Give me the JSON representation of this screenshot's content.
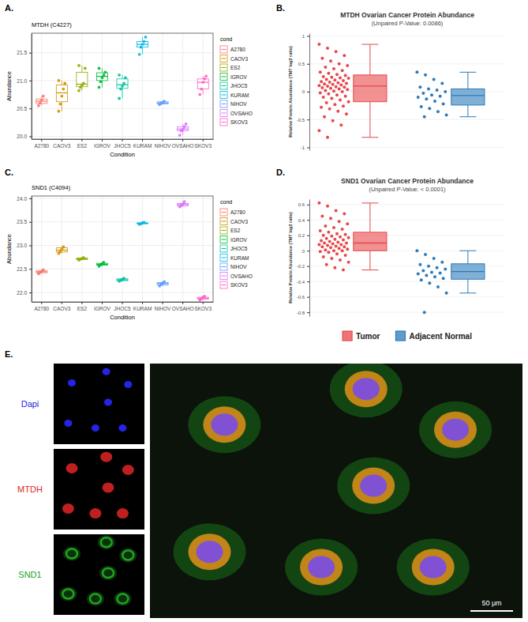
{
  "chart_data": [
    {
      "panel": "A.",
      "type": "box",
      "title": "MTDH (C4227)",
      "x_label": "Condition",
      "y_label": "Abundance",
      "legend_title": "cond",
      "legend": "right",
      "grid": true,
      "categories": [
        "A2780",
        "CAOV3",
        "ES2",
        "IGROV",
        "JHOC5",
        "KURAM",
        "NIHOV",
        "OVSAHO",
        "SKOV3"
      ],
      "colors": [
        "#F8766D",
        "#D39200",
        "#93AA00",
        "#00BA38",
        "#00C19F",
        "#00B9E3",
        "#619CFF",
        "#DB72FB",
        "#FF61C3"
      ],
      "box": {
        "min": [
          20.55,
          20.45,
          20.82,
          20.88,
          20.68,
          21.47,
          20.57,
          20.02,
          20.75
        ],
        "q1": [
          20.59,
          20.62,
          20.89,
          21.0,
          20.86,
          21.6,
          20.58,
          20.1,
          20.85
        ],
        "median": [
          20.63,
          20.78,
          20.935,
          21.075,
          20.925,
          21.65,
          20.6,
          20.13,
          20.97
        ],
        "q3": [
          20.67,
          20.92,
          21.15,
          21.14,
          21.03,
          21.7,
          20.62,
          20.17,
          21.03
        ],
        "max": [
          20.72,
          21.0,
          21.27,
          21.22,
          21.1,
          21.78,
          20.63,
          20.22,
          21.08
        ]
      },
      "points": [
        [
          20.55,
          20.6,
          20.65,
          20.72
        ],
        [
          20.45,
          20.58,
          20.72,
          20.85,
          20.95,
          21.0
        ],
        [
          20.82,
          20.88,
          20.92,
          20.95,
          21.22,
          21.27
        ],
        [
          20.88,
          20.98,
          21.05,
          21.1,
          21.15,
          21.22
        ],
        [
          20.68,
          20.85,
          20.9,
          20.95,
          21.05,
          21.1
        ],
        [
          21.47,
          21.6,
          21.65,
          21.7,
          21.78
        ],
        [
          20.57,
          20.59,
          20.61,
          20.63
        ],
        [
          20.02,
          20.1,
          20.13,
          20.17,
          20.22
        ],
        [
          20.75,
          20.85,
          20.97,
          21.03,
          21.08
        ]
      ],
      "ylim": [
        19.95,
        21.85
      ],
      "yticks": [
        {
          "value": 20,
          "label": "20.0"
        },
        20.5,
        {
          "value": 21,
          "label": "21.0"
        },
        21.5
      ]
    },
    {
      "panel": "B.",
      "type": "box",
      "title": "MTDH Ovarian Cancer Protein Abundance",
      "subtitle": "(Unpaired P-Value: 0.0086)",
      "y_label": "Relative Protein Abundance (TMT log2 ratio)",
      "tick_labels": "y",
      "grid": true,
      "series": [
        {
          "color": "#e8474a",
          "box": {
            "min": -0.82,
            "q1": -0.18,
            "median": 0.1,
            "q3": 0.3,
            "max": 0.85
          },
          "points": [
            0.85,
            0.78,
            0.72,
            0.65,
            0.6,
            0.55,
            0.5,
            0.47,
            0.44,
            0.41,
            0.38,
            0.35,
            0.33,
            0.31,
            0.29,
            0.27,
            0.26,
            0.25,
            0.24,
            0.22,
            0.21,
            0.2,
            0.18,
            0.17,
            0.16,
            0.15,
            0.14,
            0.13,
            0.12,
            0.11,
            0.1,
            0.09,
            0.08,
            0.07,
            0.06,
            0.05,
            0.04,
            0.02,
            0.01,
            0,
            -0.02,
            -0.04,
            -0.06,
            -0.08,
            -0.1,
            -0.12,
            -0.15,
            -0.18,
            -0.2,
            -0.23,
            -0.26,
            -0.28,
            -0.31,
            -0.35,
            -0.4,
            -0.45,
            -0.52,
            -0.6,
            -0.7,
            -0.82
          ]
        },
        {
          "color": "#2b7bba",
          "box": {
            "min": -0.45,
            "q1": -0.24,
            "median": -0.07,
            "q3": 0.05,
            "max": 0.35
          },
          "points": [
            0.35,
            0.3,
            0.22,
            0.15,
            0.08,
            0.05,
            0.03,
            0,
            -0.03,
            -0.06,
            -0.08,
            -0.1,
            -0.13,
            -0.17,
            -0.22,
            -0.27,
            -0.3,
            -0.36,
            -0.42,
            -0.45
          ]
        }
      ],
      "ylim": [
        -1.05,
        1.05
      ],
      "yticks": [
        -1,
        -0.5,
        0,
        0.5,
        1
      ]
    },
    {
      "panel": "C.",
      "type": "box",
      "title": "SND1 (C4094)",
      "x_label": "Condition",
      "y_label": "Abundance",
      "legend_title": "cond",
      "legend": "right",
      "grid": true,
      "categories": [
        "A2780",
        "CAOV3",
        "ES2",
        "IGROV",
        "JHOC5",
        "KURAM",
        "NIHOV",
        "OVSAHO",
        "SKOV3"
      ],
      "colors": [
        "#F8766D",
        "#D39200",
        "#93AA00",
        "#00BA38",
        "#00C19F",
        "#00B9E3",
        "#619CFF",
        "#DB72FB",
        "#FF61C3"
      ],
      "box": {
        "min": [
          22.4,
          22.83,
          22.69,
          22.56,
          22.24,
          23.45,
          22.14,
          23.82,
          21.84
        ],
        "q1": [
          22.42,
          22.86,
          22.7,
          22.58,
          22.25,
          23.46,
          22.16,
          23.84,
          21.86
        ],
        "median": [
          22.44,
          22.9,
          22.72,
          22.6,
          22.27,
          23.47,
          22.19,
          23.87,
          21.88
        ],
        "q3": [
          22.46,
          22.95,
          22.73,
          22.62,
          22.29,
          23.48,
          22.21,
          23.89,
          21.9
        ],
        "max": [
          22.48,
          22.97,
          22.74,
          22.64,
          22.3,
          23.49,
          22.23,
          23.93,
          21.92
        ]
      },
      "points": [
        [
          22.4,
          22.43,
          22.45,
          22.48
        ],
        [
          22.83,
          22.87,
          22.92,
          22.97
        ],
        [
          22.69,
          22.71,
          22.72,
          22.74
        ],
        [
          22.56,
          22.59,
          22.61,
          22.64
        ],
        [
          22.24,
          22.26,
          22.28,
          22.3
        ],
        [
          23.45,
          23.46,
          23.48,
          23.49
        ],
        [
          22.14,
          22.17,
          22.2,
          22.23
        ],
        [
          23.82,
          23.85,
          23.88,
          23.93
        ],
        [
          21.84,
          21.87,
          21.9,
          21.92
        ]
      ],
      "ylim": [
        21.8,
        24.05
      ],
      "yticks": [
        {
          "value": 22,
          "label": "22.0"
        },
        22.5,
        {
          "value": 23,
          "label": "23.0"
        },
        23.5,
        {
          "value": 24,
          "label": "24.0"
        }
      ]
    },
    {
      "panel": "D.",
      "type": "box",
      "title": "SND1 Ovarian Cancer Protein Abundance",
      "subtitle": "(Unpaired P-Value: < 0.0001)",
      "y_label": "Relative Protein Abundance (TMT log2 ratio)",
      "tick_labels": "y",
      "grid": true,
      "legend": "bottom",
      "series": [
        {
          "name": "Tumor",
          "color": "#e8474a",
          "box": {
            "min": -0.25,
            "q1": 0,
            "median": 0.1,
            "q3": 0.24,
            "max": 0.62
          },
          "points": [
            0.62,
            0.58,
            0.52,
            0.48,
            0.45,
            0.42,
            0.38,
            0.35,
            0.32,
            0.3,
            0.28,
            0.26,
            0.24,
            0.22,
            0.21,
            0.2,
            0.19,
            0.18,
            0.17,
            0.16,
            0.15,
            0.14,
            0.13,
            0.12,
            0.11,
            0.1,
            0.1,
            0.09,
            0.08,
            0.08,
            0.07,
            0.06,
            0.05,
            0.05,
            0.04,
            0.03,
            0.02,
            0.01,
            0,
            0,
            -0.01,
            -0.02,
            -0.04,
            -0.06,
            -0.08,
            -0.1,
            -0.12,
            -0.15,
            -0.18,
            -0.22,
            -0.25
          ]
        },
        {
          "name": "Adjacent Normal",
          "color": "#2b7bba",
          "box": {
            "min": -0.55,
            "q1": -0.37,
            "median": -0.27,
            "q3": -0.17,
            "max": 0
          },
          "points": [
            0,
            -0.05,
            -0.1,
            -0.15,
            -0.18,
            -0.2,
            -0.22,
            -0.24,
            -0.26,
            -0.28,
            -0.29,
            -0.3,
            -0.32,
            -0.34,
            -0.36,
            -0.38,
            -0.42,
            -0.47,
            -0.55,
            -0.8
          ]
        }
      ],
      "ylim": [
        -0.85,
        0.67
      ],
      "yticks": [
        -0.8,
        -0.6,
        -0.4,
        -0.2,
        0,
        0.2,
        0.4,
        0.6
      ]
    }
  ],
  "image_panel": {
    "panel": "E.",
    "channels": [
      {
        "name": "Dapi",
        "color": "#2424e6"
      },
      {
        "name": "MTDH",
        "color": "#e02424"
      },
      {
        "name": "SND1",
        "color": "#22a322"
      }
    ],
    "scale_bar": "50 μm"
  }
}
